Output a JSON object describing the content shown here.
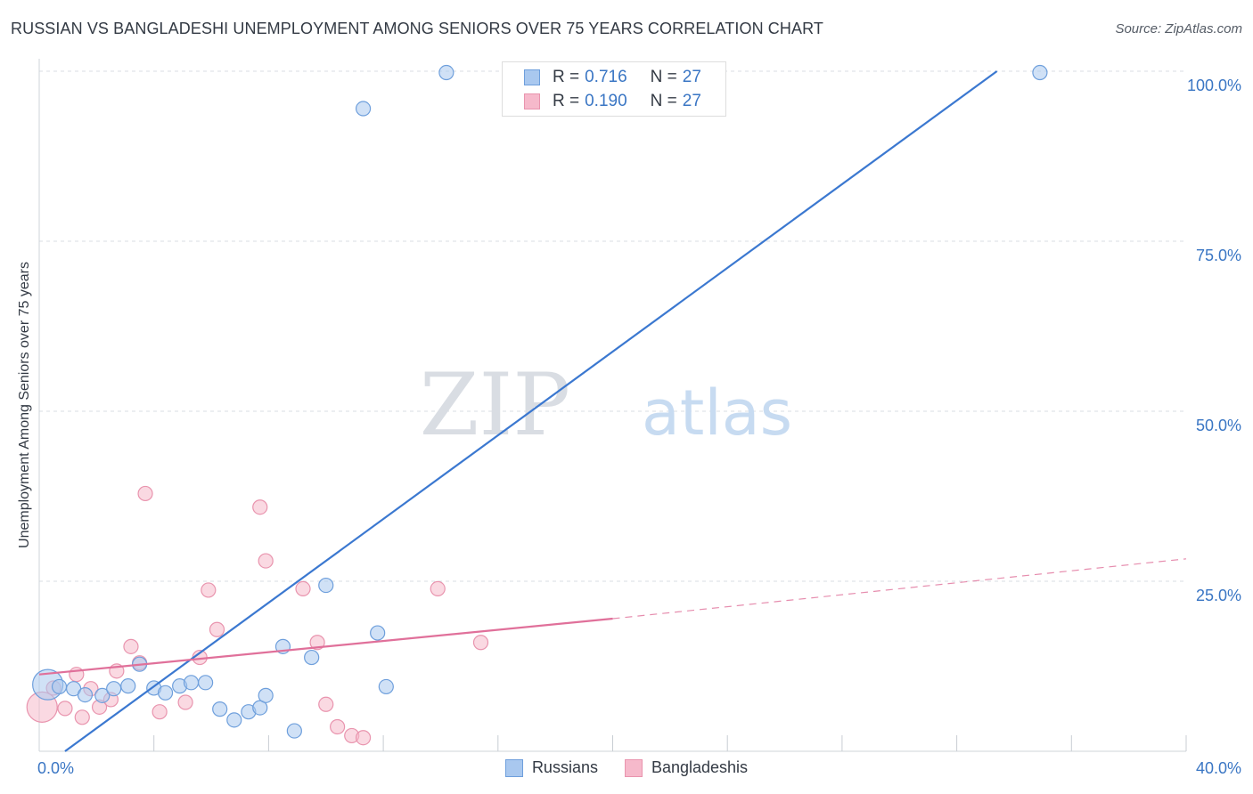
{
  "title": "RUSSIAN VS BANGLADESHI UNEMPLOYMENT AMONG SENIORS OVER 75 YEARS CORRELATION CHART",
  "source": "Source: ZipAtlas.com",
  "watermark": {
    "zip": "ZIP",
    "atlas": "atlas"
  },
  "legend": {
    "russians": {
      "r_label": "R =",
      "r_value": "0.716",
      "n_label": "N =",
      "n_value": "27"
    },
    "bangladeshis": {
      "r_label": "R =",
      "r_value": "0.190",
      "n_label": "N =",
      "n_value": "27"
    }
  },
  "colors": {
    "russians_fill": "#a9c8ef",
    "russians_stroke": "#6e9fdc",
    "russians_line": "#3b78d0",
    "bangladeshis_fill": "#f6b9cb",
    "bangladeshis_stroke": "#e994ae",
    "bangladeshis_line": "#e0709a",
    "axis_text": "#3a76c4"
  },
  "chart_data": {
    "type": "scatter",
    "title": "RUSSIAN VS BANGLADESHI UNEMPLOYMENT AMONG SENIORS OVER 75 YEARS CORRELATION CHART",
    "xlabel": "",
    "ylabel": "Unemployment Among Seniors over 75 years",
    "xlim": [
      0,
      40
    ],
    "ylim": [
      0,
      100
    ],
    "x_tick_labels": [
      "0.0%",
      "40.0%"
    ],
    "y_ticks": [
      25,
      50,
      75,
      100
    ],
    "y_tick_labels": [
      "25.0%",
      "50.0%",
      "75.0%",
      "100.0%"
    ],
    "grid": true,
    "series": [
      {
        "name": "Russians",
        "r": 0.716,
        "n": 27,
        "points": [
          {
            "x": 0.3,
            "y": 9.8,
            "size": "large"
          },
          {
            "x": 0.7,
            "y": 9.5
          },
          {
            "x": 1.2,
            "y": 9.2
          },
          {
            "x": 1.6,
            "y": 8.3
          },
          {
            "x": 2.2,
            "y": 8.2
          },
          {
            "x": 2.6,
            "y": 9.2
          },
          {
            "x": 3.1,
            "y": 9.6
          },
          {
            "x": 3.5,
            "y": 12.8
          },
          {
            "x": 4.0,
            "y": 9.3
          },
          {
            "x": 4.4,
            "y": 8.6
          },
          {
            "x": 4.9,
            "y": 9.6
          },
          {
            "x": 5.3,
            "y": 10.1
          },
          {
            "x": 5.8,
            "y": 10.1
          },
          {
            "x": 6.3,
            "y": 6.2
          },
          {
            "x": 6.8,
            "y": 4.6
          },
          {
            "x": 7.3,
            "y": 5.8
          },
          {
            "x": 7.7,
            "y": 6.4
          },
          {
            "x": 7.9,
            "y": 8.2
          },
          {
            "x": 8.5,
            "y": 15.4
          },
          {
            "x": 8.9,
            "y": 3.0
          },
          {
            "x": 9.5,
            "y": 13.8
          },
          {
            "x": 10.0,
            "y": 24.4
          },
          {
            "x": 11.3,
            "y": 94.5
          },
          {
            "x": 11.8,
            "y": 17.4
          },
          {
            "x": 12.1,
            "y": 9.5
          },
          {
            "x": 14.2,
            "y": 99.8
          },
          {
            "x": 34.9,
            "y": 99.8
          }
        ],
        "trend": {
          "x1": 0.9,
          "y1": 0,
          "x2": 33.4,
          "y2": 100
        }
      },
      {
        "name": "Bangladeshis",
        "r": 0.19,
        "n": 27,
        "points": [
          {
            "x": 0.1,
            "y": 6.5,
            "size": "large"
          },
          {
            "x": 0.5,
            "y": 9.3
          },
          {
            "x": 0.9,
            "y": 6.3
          },
          {
            "x": 1.3,
            "y": 11.3
          },
          {
            "x": 1.5,
            "y": 5.0
          },
          {
            "x": 1.8,
            "y": 9.2
          },
          {
            "x": 2.1,
            "y": 6.5
          },
          {
            "x": 2.5,
            "y": 7.6
          },
          {
            "x": 2.7,
            "y": 11.8
          },
          {
            "x": 3.2,
            "y": 15.4
          },
          {
            "x": 3.5,
            "y": 13.0
          },
          {
            "x": 3.7,
            "y": 37.9
          },
          {
            "x": 4.2,
            "y": 5.8
          },
          {
            "x": 5.1,
            "y": 7.2
          },
          {
            "x": 5.6,
            "y": 13.8
          },
          {
            "x": 5.9,
            "y": 23.7
          },
          {
            "x": 6.2,
            "y": 17.9
          },
          {
            "x": 7.7,
            "y": 35.9
          },
          {
            "x": 7.9,
            "y": 28.0
          },
          {
            "x": 9.2,
            "y": 23.9
          },
          {
            "x": 9.7,
            "y": 16.0
          },
          {
            "x": 10.0,
            "y": 6.9
          },
          {
            "x": 10.4,
            "y": 3.6
          },
          {
            "x": 10.9,
            "y": 2.3
          },
          {
            "x": 11.3,
            "y": 2.0
          },
          {
            "x": 13.9,
            "y": 23.9
          },
          {
            "x": 15.4,
            "y": 16.0
          }
        ],
        "trend": {
          "x1": 0,
          "y1": 11.3,
          "x2": 20.0,
          "y2": 19.5
        },
        "trend_dashed": {
          "x1": 20.0,
          "y1": 19.5,
          "x2": 40.0,
          "y2": 28.3
        }
      }
    ]
  }
}
